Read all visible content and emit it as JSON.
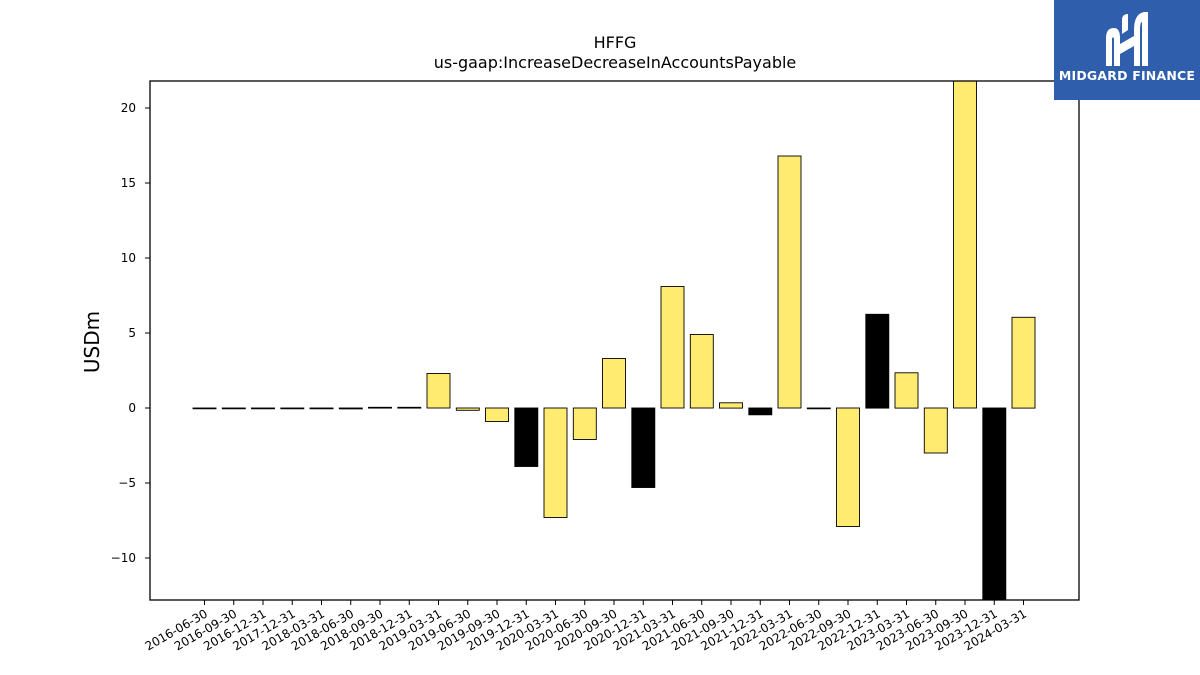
{
  "brand": {
    "name": "MIDGARD FINANCE",
    "logo_icon": "midgard-m-logo-icon",
    "background_color": "#2f5fac"
  },
  "chart_data": {
    "type": "bar",
    "title": "HFFG",
    "subtitle": "us-gaap:IncreaseDecreaseInAccountsPayable",
    "xlabel": "",
    "ylabel": "USDm",
    "ylim": [
      -12.8,
      21.8
    ],
    "yticks": [
      -10,
      -5,
      0,
      5,
      10,
      15,
      20
    ],
    "grid": false,
    "legend": "none",
    "colors": {
      "q_bar": "#ffeb70",
      "annual_bar": "#000000",
      "edge": "#000000"
    },
    "categories": [
      "2016-06-30",
      "2016-09-30",
      "2016-12-31",
      "2017-12-31",
      "2018-03-31",
      "2018-06-30",
      "2018-09-30",
      "2018-12-31",
      "2019-03-31",
      "2019-06-30",
      "2019-09-30",
      "2019-12-31",
      "2020-03-31",
      "2020-06-30",
      "2020-09-30",
      "2020-12-31",
      "2021-03-31",
      "2021-06-30",
      "2021-09-30",
      "2021-12-31",
      "2022-03-31",
      "2022-06-30",
      "2022-09-30",
      "2022-12-31",
      "2023-03-31",
      "2023-06-30",
      "2023-09-30",
      "2023-12-31",
      "2024-03-31"
    ],
    "values": [
      0.0,
      0.0,
      0.0,
      -0.05,
      0.0,
      -0.06,
      0.05,
      0.05,
      2.3,
      -0.15,
      -0.9,
      -3.9,
      -7.3,
      -2.1,
      3.3,
      -5.3,
      8.1,
      4.9,
      0.35,
      -0.45,
      16.8,
      0.0,
      -7.9,
      6.25,
      2.35,
      -3.0,
      21.8,
      -12.8,
      6.05
    ],
    "bar_kind": [
      "q",
      "q",
      "q",
      "annual",
      "q",
      "annual",
      "q",
      "annual",
      "q",
      "q",
      "q",
      "annual",
      "q",
      "q",
      "q",
      "annual",
      "q",
      "q",
      "q",
      "annual",
      "q",
      "q",
      "q",
      "annual",
      "q",
      "q",
      "q",
      "annual",
      "q"
    ]
  }
}
